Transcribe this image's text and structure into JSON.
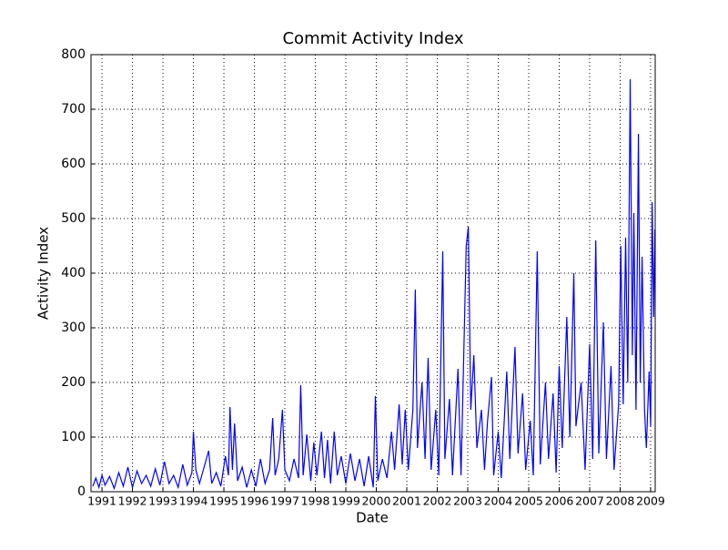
{
  "chart_data": {
    "type": "line",
    "title": "Commit Activity Index",
    "x_label": "Date",
    "y_label": "Activity Index",
    "xlim": [
      1990.64,
      2009.15
    ],
    "xticks": [
      1991,
      1992,
      1993,
      1994,
      1995,
      1996,
      1997,
      1998,
      1999,
      2000,
      2001,
      2002,
      2003,
      2004,
      2005,
      2006,
      2007,
      2008,
      2009
    ],
    "ylim": [
      0,
      800
    ],
    "yticks": [
      0,
      100,
      200,
      300,
      400,
      500,
      600,
      700,
      800
    ],
    "grid": true,
    "x": [
      1990.7,
      1990.8,
      1990.9,
      1991.0,
      1991.1,
      1991.25,
      1991.4,
      1991.55,
      1991.7,
      1991.85,
      1992.0,
      1992.15,
      1992.3,
      1992.45,
      1992.6,
      1992.75,
      1992.9,
      1993.05,
      1993.2,
      1993.35,
      1993.5,
      1993.65,
      1993.8,
      1993.95,
      1994.0,
      1994.08,
      1994.2,
      1994.35,
      1994.5,
      1994.6,
      1994.75,
      1994.9,
      1995.05,
      1995.15,
      1995.2,
      1995.28,
      1995.35,
      1995.45,
      1995.6,
      1995.75,
      1995.9,
      1996.05,
      1996.2,
      1996.35,
      1996.5,
      1996.6,
      1996.68,
      1996.8,
      1996.92,
      1997.0,
      1997.15,
      1997.3,
      1997.45,
      1997.52,
      1997.6,
      1997.72,
      1997.85,
      1997.95,
      1998.05,
      1998.2,
      1998.3,
      1998.4,
      1998.5,
      1998.62,
      1998.72,
      1998.85,
      1999.0,
      1999.15,
      1999.3,
      1999.45,
      1999.6,
      1999.75,
      1999.9,
      1999.97,
      2000.05,
      2000.2,
      2000.35,
      2000.5,
      2000.6,
      2000.75,
      2000.85,
      2000.95,
      2001.05,
      2001.2,
      2001.28,
      2001.35,
      2001.5,
      2001.6,
      2001.7,
      2001.8,
      2001.95,
      2002.05,
      2002.18,
      2002.25,
      2002.4,
      2002.5,
      2002.68,
      2002.78,
      2002.95,
      2003.02,
      2003.1,
      2003.2,
      2003.3,
      2003.45,
      2003.55,
      2003.65,
      2003.78,
      2003.85,
      2004.0,
      2004.1,
      2004.28,
      2004.38,
      2004.55,
      2004.65,
      2004.8,
      2004.9,
      2005.05,
      2005.15,
      2005.28,
      2005.38,
      2005.55,
      2005.65,
      2005.8,
      2005.9,
      2006.0,
      2006.1,
      2006.25,
      2006.35,
      2006.48,
      2006.55,
      2006.72,
      2006.85,
      2007.0,
      2007.1,
      2007.2,
      2007.3,
      2007.45,
      2007.55,
      2007.7,
      2007.8,
      2007.95,
      2008.02,
      2008.1,
      2008.18,
      2008.25,
      2008.33,
      2008.4,
      2008.45,
      2008.52,
      2008.6,
      2008.66,
      2008.72,
      2008.8,
      2008.86,
      2008.95,
      2009.0,
      2009.05,
      2009.1,
      2009.14
    ],
    "series": [
      {
        "color": "#0000ff",
        "values": [
          10,
          25,
          8,
          30,
          12,
          28,
          6,
          35,
          10,
          45,
          8,
          38,
          15,
          30,
          10,
          42,
          12,
          55,
          15,
          30,
          8,
          50,
          12,
          35,
          110,
          40,
          15,
          45,
          75,
          15,
          35,
          10,
          65,
          30,
          155,
          40,
          125,
          20,
          45,
          8,
          40,
          10,
          60,
          15,
          40,
          135,
          30,
          60,
          150,
          40,
          20,
          60,
          25,
          195,
          30,
          105,
          20,
          90,
          30,
          110,
          25,
          95,
          15,
          110,
          30,
          65,
          15,
          70,
          20,
          60,
          10,
          65,
          8,
          175,
          20,
          60,
          25,
          110,
          40,
          160,
          50,
          150,
          40,
          150,
          370,
          80,
          200,
          60,
          245,
          40,
          150,
          30,
          440,
          60,
          170,
          30,
          225,
          30,
          450,
          485,
          150,
          250,
          80,
          150,
          40,
          130,
          210,
          30,
          110,
          25,
          220,
          60,
          265,
          70,
          180,
          40,
          130,
          30,
          440,
          50,
          200,
          60,
          180,
          35,
          230,
          80,
          320,
          100,
          400,
          120,
          200,
          40,
          270,
          60,
          460,
          70,
          310,
          60,
          230,
          40,
          160,
          450,
          160,
          465,
          200,
          755,
          250,
          510,
          150,
          655,
          200,
          430,
          150,
          80,
          220,
          120,
          530,
          320,
          480
        ]
      }
    ]
  }
}
